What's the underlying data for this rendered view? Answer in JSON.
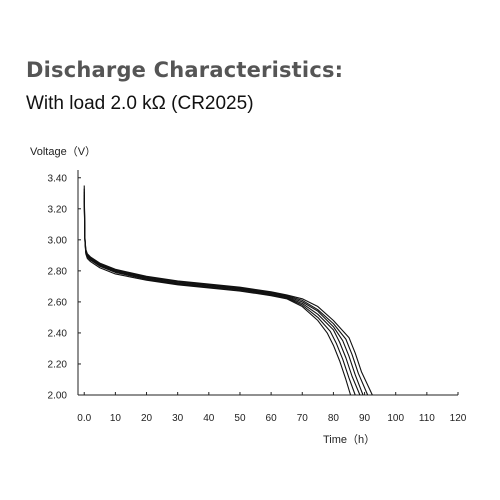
{
  "header": {
    "title": "Discharge Characteristics:",
    "subtitle": "With load 2.0 kΩ (CR2025)"
  },
  "chart_data": {
    "type": "line",
    "ylabel": "Voltage（V）",
    "xlabel": "Time（h）",
    "xlim": [
      -2,
      120
    ],
    "ylim": [
      2.0,
      3.45
    ],
    "x_ticks": [
      "0.0",
      "10",
      "20",
      "30",
      "40",
      "50",
      "60",
      "70",
      "80",
      "90",
      "100",
      "110",
      "120"
    ],
    "x_tick_values": [
      0,
      10,
      20,
      30,
      40,
      50,
      60,
      70,
      80,
      90,
      100,
      110,
      120
    ],
    "y_ticks": [
      "2.00",
      "2.20",
      "2.40",
      "2.60",
      "2.80",
      "3.00",
      "3.20",
      "3.40"
    ],
    "y_tick_values": [
      2.0,
      2.2,
      2.4,
      2.6,
      2.8,
      3.0,
      3.2,
      3.4
    ],
    "grid": false,
    "line_color": "#111111",
    "series": [
      {
        "x": [
          0,
          0.2,
          0.5,
          1,
          2,
          5,
          10,
          20,
          30,
          40,
          50,
          60,
          65,
          70,
          75,
          78,
          80,
          82,
          84,
          85.5
        ],
        "values": [
          3.35,
          3.0,
          2.91,
          2.88,
          2.86,
          2.82,
          2.78,
          2.74,
          2.71,
          2.69,
          2.67,
          2.64,
          2.62,
          2.57,
          2.48,
          2.4,
          2.32,
          2.22,
          2.1,
          2.0
        ]
      },
      {
        "x": [
          0,
          0.2,
          0.5,
          1,
          2,
          5,
          10,
          20,
          30,
          40,
          50,
          60,
          65,
          70,
          75,
          79,
          81,
          83,
          85,
          87
        ],
        "values": [
          3.33,
          3.0,
          2.92,
          2.89,
          2.87,
          2.83,
          2.79,
          2.745,
          2.715,
          2.695,
          2.675,
          2.645,
          2.625,
          2.58,
          2.5,
          2.41,
          2.33,
          2.23,
          2.11,
          2.0
        ]
      },
      {
        "x": [
          0,
          0.2,
          0.5,
          1,
          2,
          5,
          10,
          20,
          30,
          40,
          50,
          60,
          65,
          70,
          75,
          80,
          82,
          84,
          86,
          88.5
        ],
        "values": [
          3.31,
          3.01,
          2.92,
          2.895,
          2.875,
          2.835,
          2.795,
          2.75,
          2.72,
          2.7,
          2.68,
          2.65,
          2.63,
          2.59,
          2.52,
          2.42,
          2.34,
          2.24,
          2.12,
          2.0
        ]
      },
      {
        "x": [
          0,
          0.2,
          0.5,
          1,
          2,
          5,
          10,
          20,
          30,
          40,
          50,
          60,
          65,
          70,
          75,
          80,
          83,
          85,
          87,
          89.5
        ],
        "values": [
          3.29,
          3.01,
          2.93,
          2.9,
          2.88,
          2.84,
          2.8,
          2.755,
          2.725,
          2.705,
          2.685,
          2.655,
          2.635,
          2.6,
          2.54,
          2.44,
          2.35,
          2.25,
          2.13,
          2.0
        ]
      },
      {
        "x": [
          0,
          0.2,
          0.5,
          1,
          2,
          5,
          10,
          20,
          30,
          40,
          50,
          60,
          65,
          70,
          75,
          80,
          84,
          86,
          88,
          91
        ],
        "values": [
          3.27,
          3.02,
          2.93,
          2.905,
          2.885,
          2.845,
          2.805,
          2.76,
          2.73,
          2.71,
          2.69,
          2.66,
          2.64,
          2.61,
          2.55,
          2.46,
          2.36,
          2.26,
          2.14,
          2.0
        ]
      },
      {
        "x": [
          0,
          0.2,
          0.5,
          1,
          2,
          5,
          10,
          20,
          30,
          40,
          50,
          60,
          65,
          70,
          75,
          80,
          85,
          87,
          89,
          92.5
        ],
        "values": [
          3.25,
          3.02,
          2.94,
          2.91,
          2.89,
          2.85,
          2.81,
          2.765,
          2.735,
          2.715,
          2.695,
          2.665,
          2.645,
          2.62,
          2.57,
          2.48,
          2.37,
          2.27,
          2.15,
          2.0
        ]
      }
    ]
  }
}
